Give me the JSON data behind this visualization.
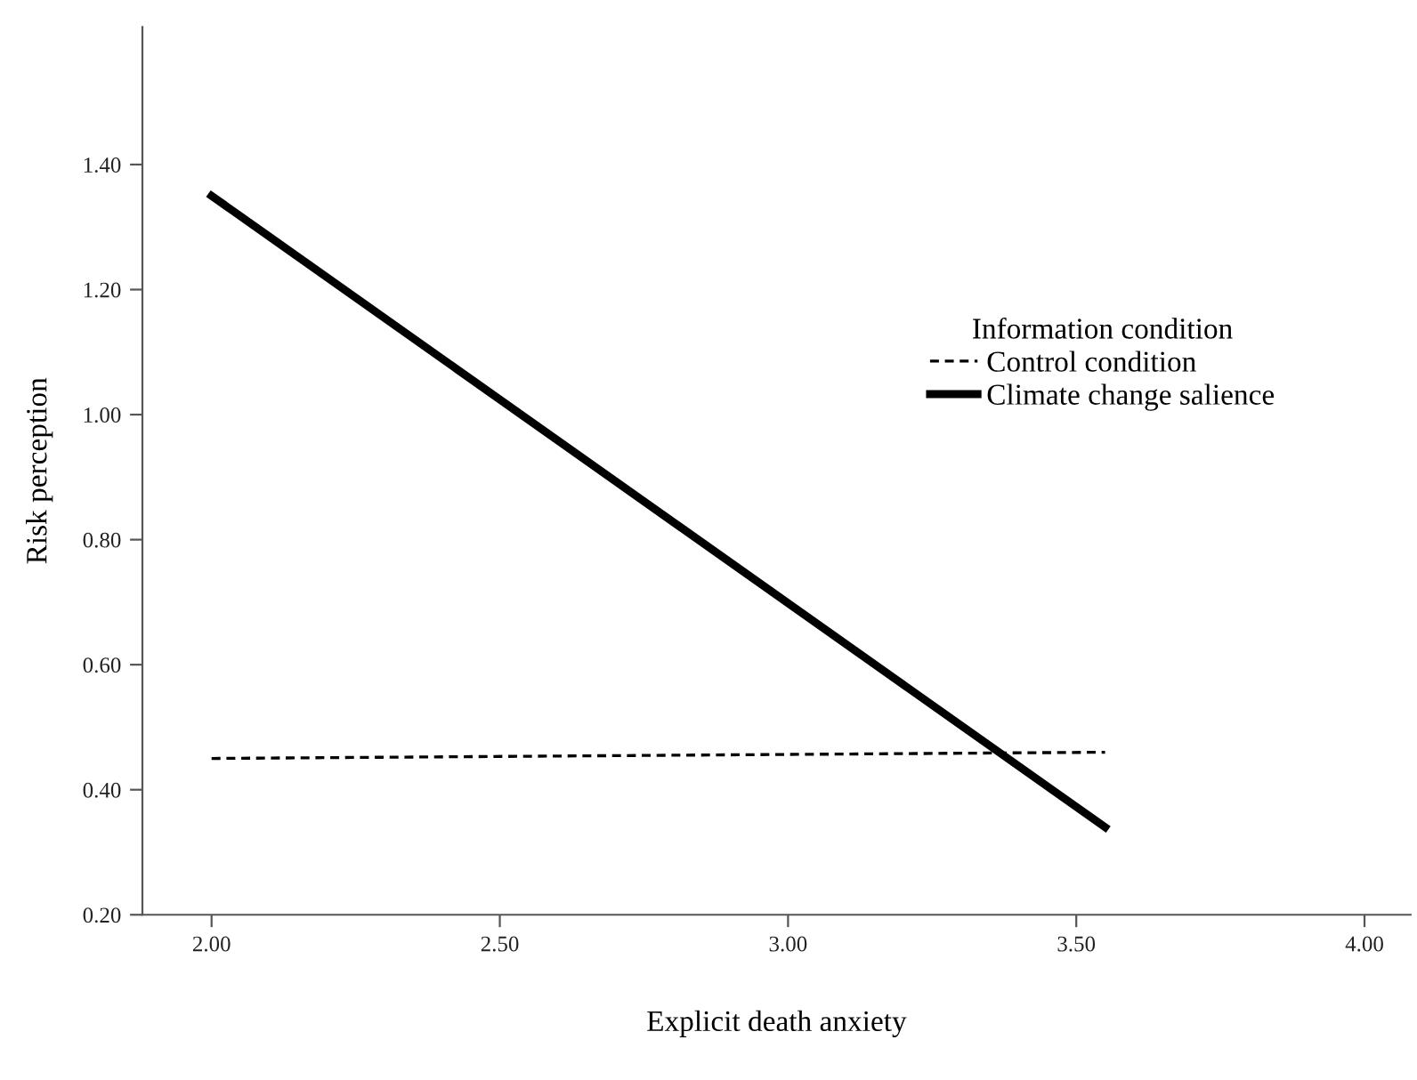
{
  "chart_data": {
    "type": "line",
    "xlabel": "Explicit death anxiety",
    "ylabel": "Risk perception",
    "legend_title": "Information condition",
    "x": [
      2.0,
      3.55
    ],
    "series": [
      {
        "name": "Control condition",
        "color": "#000000",
        "values": [
          0.45,
          0.46
        ],
        "line_style": "dashed"
      },
      {
        "name": "Climate change salience",
        "color": "#000000",
        "values": [
          1.35,
          0.34
        ],
        "line_style": "solid"
      }
    ],
    "xlim": [
      1.88,
      4.08
    ],
    "xticks": [
      {
        "value": 2.0,
        "label": "2.00"
      },
      {
        "value": 2.5,
        "label": "2.50"
      },
      {
        "value": 3.0,
        "label": "3.00"
      },
      {
        "value": 3.5,
        "label": "3.50"
      },
      {
        "value": 4.0,
        "label": "4.00"
      }
    ],
    "ylim": [
      0.2,
      1.62
    ],
    "yticks": [
      {
        "value": 0.2,
        "label": "0.20"
      },
      {
        "value": 0.4,
        "label": "0.40"
      },
      {
        "value": 0.6,
        "label": "0.60"
      },
      {
        "value": 0.8,
        "label": "0.80"
      },
      {
        "value": 1.0,
        "label": "1.00"
      },
      {
        "value": 1.2,
        "label": "1.20"
      },
      {
        "value": 1.4,
        "label": "1.40"
      }
    ],
    "grid": false,
    "legend": "right",
    "marker": "none"
  }
}
